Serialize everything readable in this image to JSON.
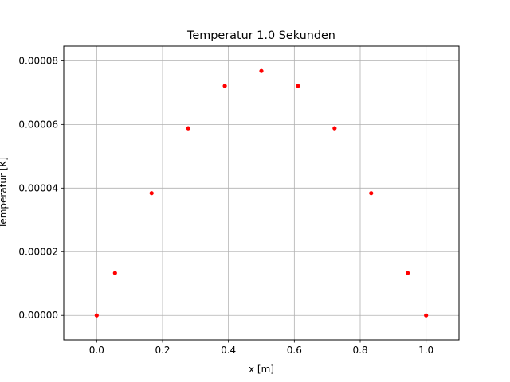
{
  "chart_data": {
    "type": "scatter",
    "title": "Temperatur 1.0 Sekunden",
    "xlabel": "x [m]",
    "ylabel": "Temperatur [K]",
    "xlim": [
      -0.1,
      1.1
    ],
    "ylim": [
      -7.7e-06,
      8.46e-05
    ],
    "xticks": [
      0.0,
      0.2,
      0.4,
      0.6,
      0.8,
      1.0
    ],
    "xtick_labels": [
      "0.0",
      "0.2",
      "0.4",
      "0.6",
      "0.8",
      "1.0"
    ],
    "yticks": [
      0.0,
      2e-05,
      4e-05,
      6e-05,
      8e-05
    ],
    "ytick_labels": [
      "0.00000",
      "0.00002",
      "0.00004",
      "0.00006",
      "0.00008"
    ],
    "grid": true,
    "marker_color": "#ff0000",
    "series": [
      {
        "x": [
          0.0,
          0.0556,
          0.1667,
          0.2778,
          0.3889,
          0.5,
          0.6111,
          0.7222,
          0.8333,
          0.9444,
          1.0
        ],
        "y": [
          0.0,
          1.33e-05,
          3.84e-05,
          5.88e-05,
          7.21e-05,
          7.68e-05,
          7.21e-05,
          5.88e-05,
          3.84e-05,
          1.33e-05,
          0.0
        ]
      }
    ]
  }
}
